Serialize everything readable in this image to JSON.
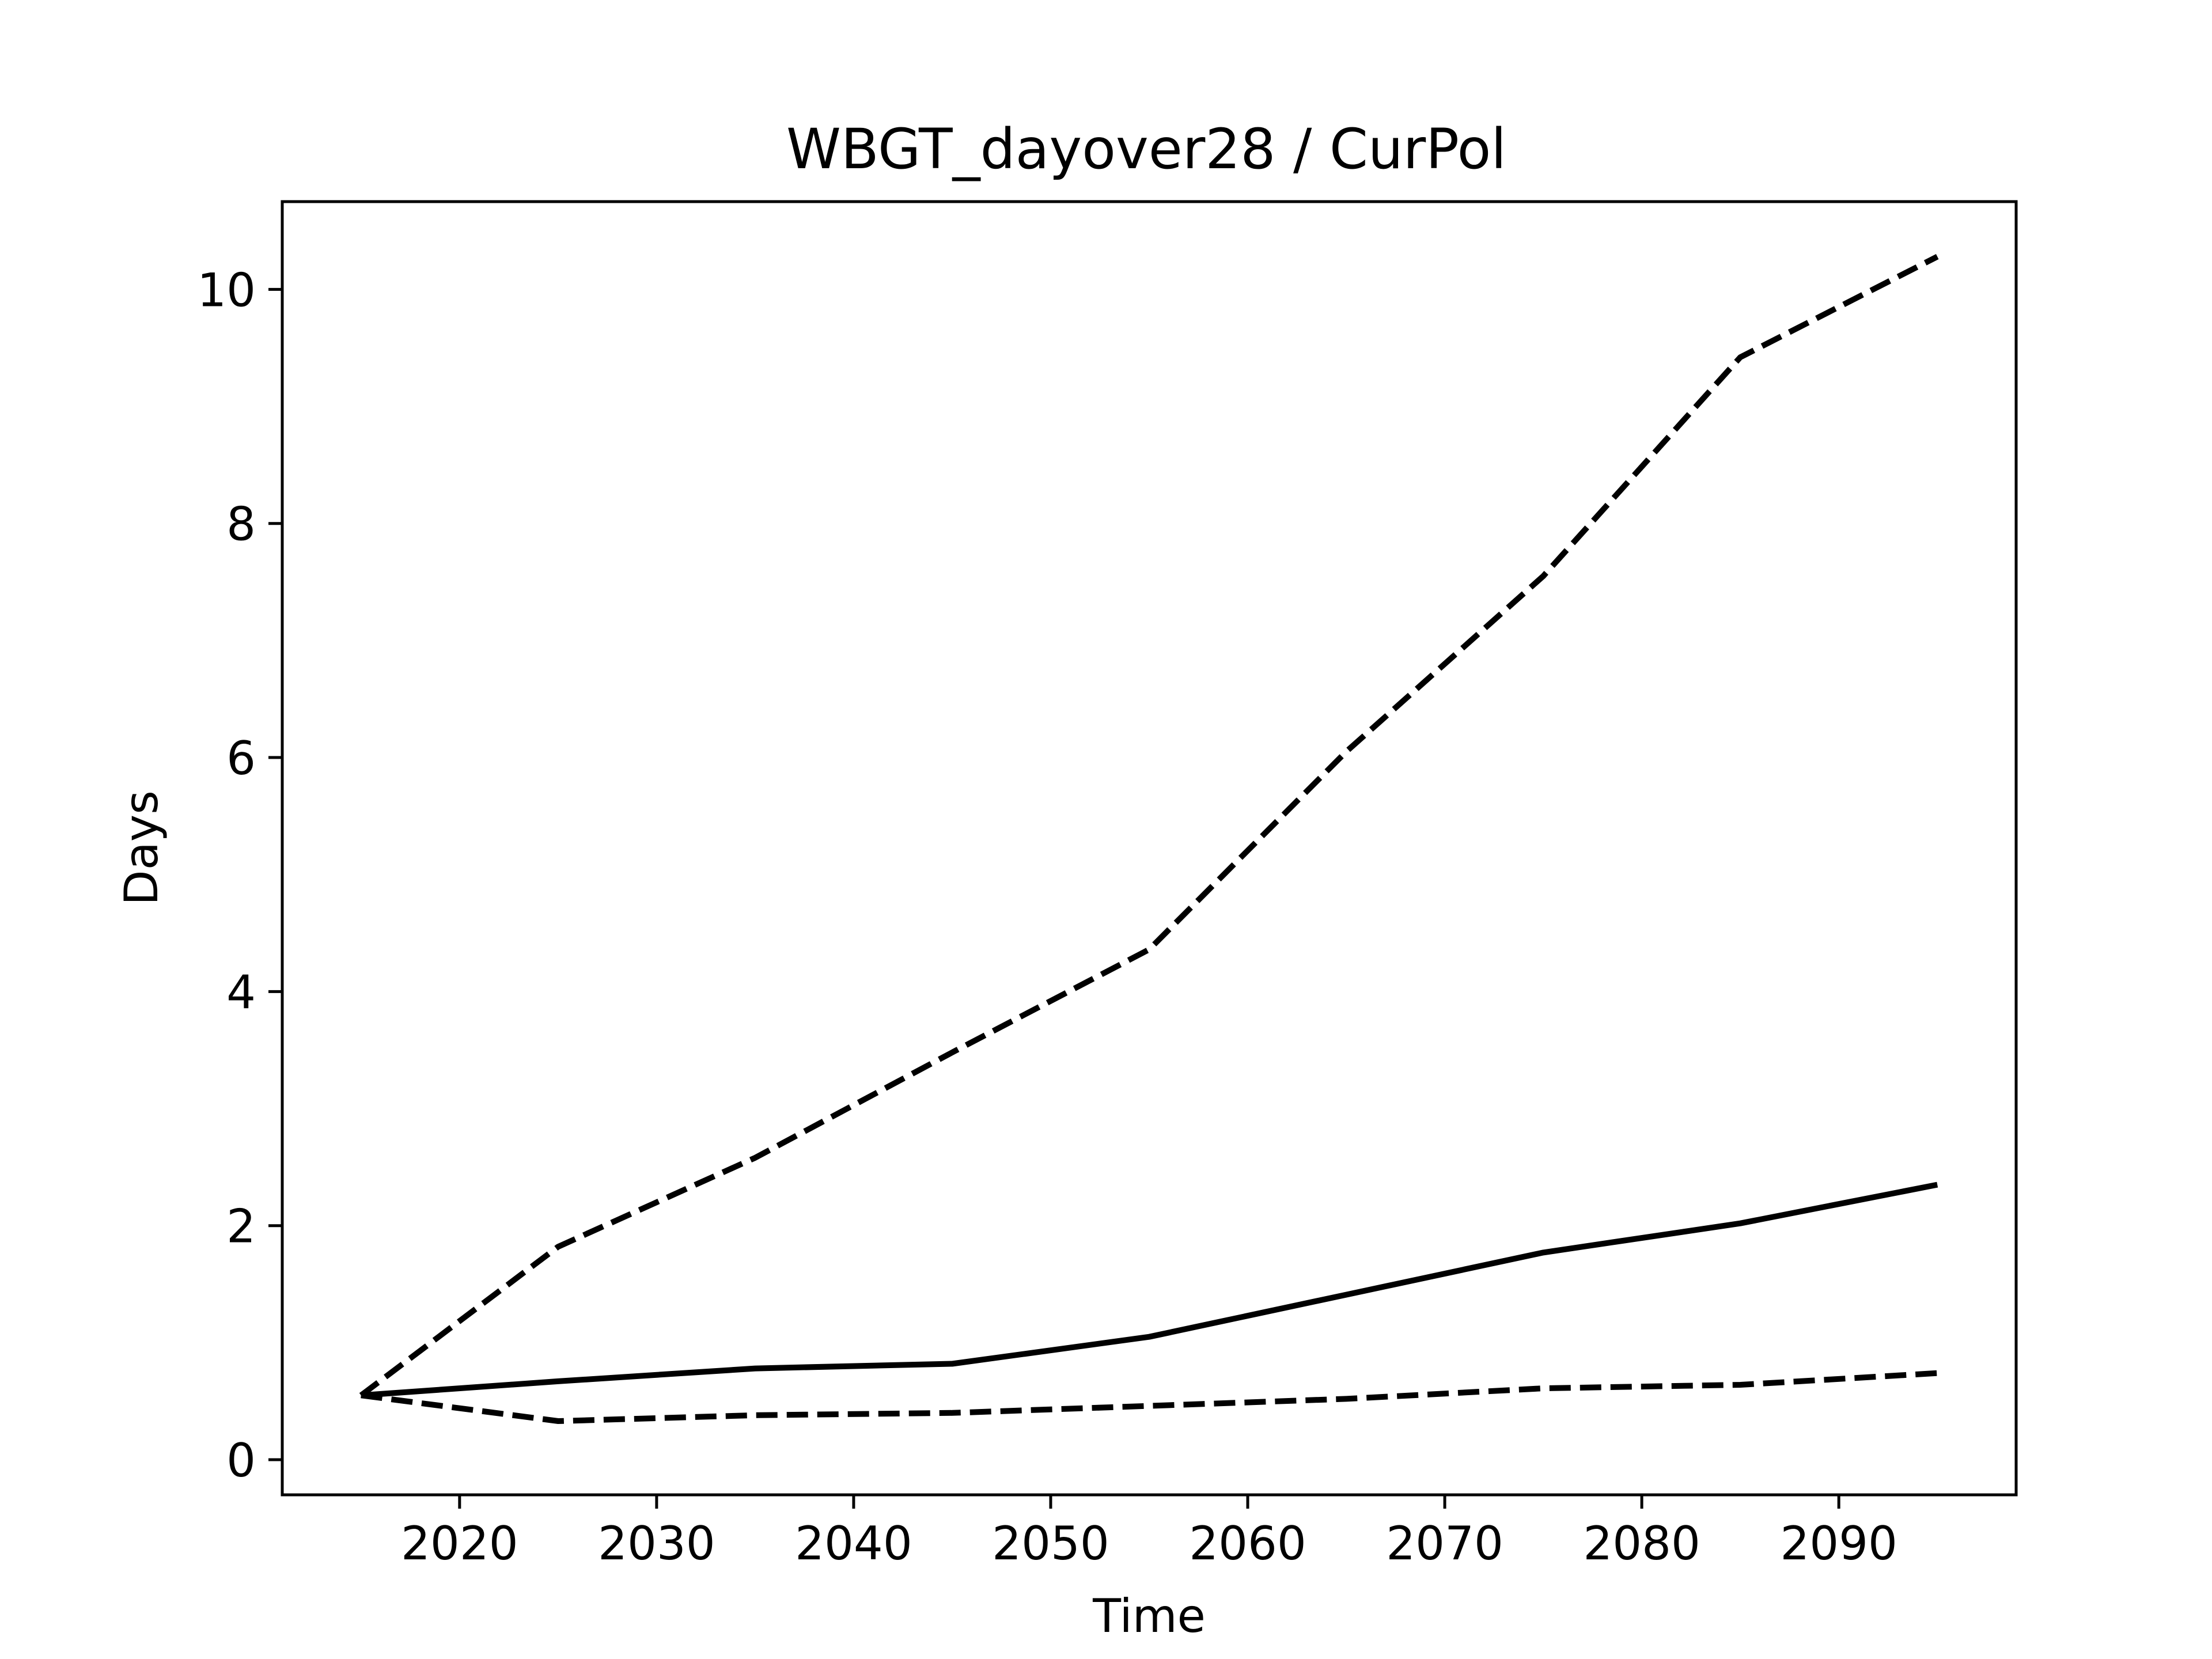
{
  "chart_data": {
    "type": "line",
    "title": "WBGT_dayover28 / CurPol",
    "xlabel": "Time",
    "ylabel": "Days",
    "xlim": [
      2011,
      2099
    ],
    "ylim": [
      -0.3,
      10.75
    ],
    "xticks": [
      2020,
      2030,
      2040,
      2050,
      2060,
      2070,
      2080,
      2090
    ],
    "yticks": [
      0,
      2,
      4,
      6,
      8,
      10
    ],
    "x": [
      2015,
      2025,
      2035,
      2045,
      2055,
      2065,
      2075,
      2085,
      2095
    ],
    "series": [
      {
        "style": "dashed",
        "color": "#000000",
        "values": [
          0.55,
          1.82,
          2.58,
          3.48,
          4.36,
          6.05,
          7.55,
          9.42,
          10.28
        ]
      },
      {
        "style": "solid",
        "color": "#000000",
        "values": [
          0.55,
          0.67,
          0.78,
          0.82,
          1.05,
          1.41,
          1.77,
          2.02,
          2.35
        ]
      },
      {
        "style": "dashed",
        "color": "#000000",
        "values": [
          0.55,
          0.33,
          0.38,
          0.4,
          0.46,
          0.52,
          0.61,
          0.64,
          0.74
        ]
      }
    ],
    "grid": false,
    "legend": "none"
  }
}
